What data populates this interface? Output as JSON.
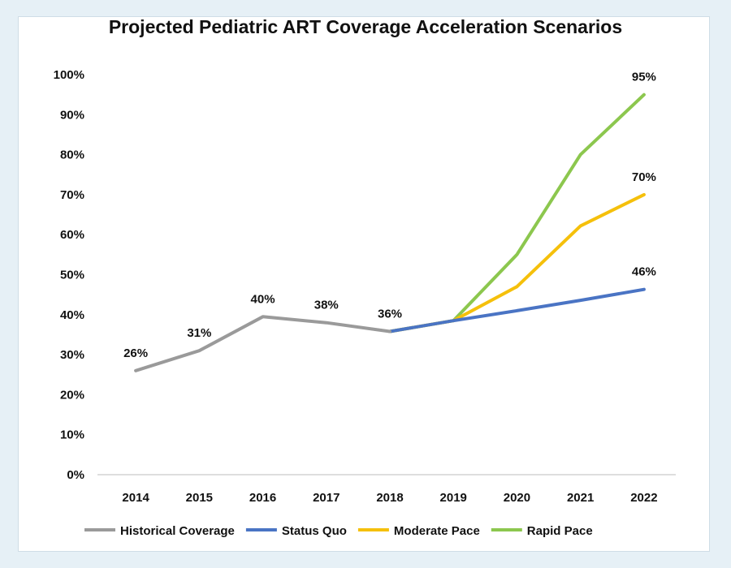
{
  "chart_data": {
    "type": "line",
    "title": "Projected Pediatric ART Coverage Acceleration Scenarios",
    "xlabel": "",
    "ylabel": "",
    "categories": [
      "2014",
      "2015",
      "2016",
      "2017",
      "2018",
      "2019",
      "2020",
      "2021",
      "2022"
    ],
    "yticks": [
      "0%",
      "10%",
      "20%",
      "30%",
      "40%",
      "50%",
      "60%",
      "70%",
      "80%",
      "90%",
      "100%"
    ],
    "ylim": [
      0,
      100
    ],
    "grid": false,
    "legend_position": "bottom",
    "series": [
      {
        "name": "Historical Coverage",
        "color": "#9a9a9a",
        "values": [
          26,
          31,
          39.5,
          38,
          35.8,
          null,
          null,
          null,
          null
        ],
        "labels": [
          "26%",
          "31%",
          "40%",
          "38%",
          "36%",
          "",
          "",
          "",
          ""
        ]
      },
      {
        "name": "Status Quo",
        "color": "#4a74c4",
        "values": [
          null,
          null,
          null,
          null,
          35.8,
          38.5,
          41,
          43.6,
          46.3
        ],
        "labels": [
          "",
          "",
          "",
          "",
          "",
          "",
          "",
          "",
          "46%"
        ]
      },
      {
        "name": "Moderate Pace",
        "color": "#f5c00b",
        "values": [
          null,
          null,
          null,
          null,
          35.8,
          38.5,
          47,
          62.2,
          70
        ],
        "labels": [
          "",
          "",
          "",
          "",
          "",
          "",
          "",
          "",
          "70%"
        ]
      },
      {
        "name": "Rapid Pace",
        "color": "#8cc74e",
        "values": [
          null,
          null,
          null,
          null,
          35.8,
          38.5,
          55,
          80,
          95
        ],
        "labels": [
          "",
          "",
          "",
          "",
          "",
          "",
          "",
          "",
          "95%"
        ]
      }
    ]
  }
}
